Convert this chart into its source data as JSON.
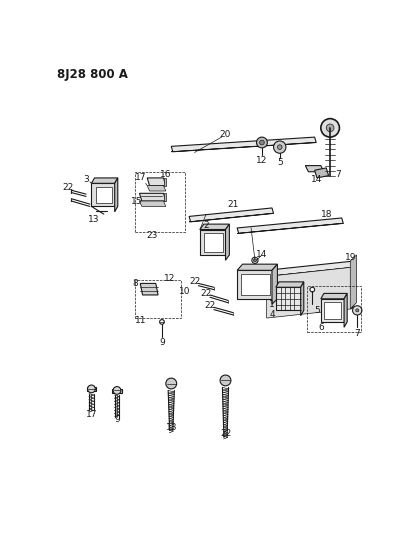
{
  "title": "8J28 800 A",
  "bg_color": "#ffffff",
  "line_color": "#1a1a1a",
  "title_fontsize": 8.5,
  "label_fontsize": 6.5,
  "fig_width": 4.09,
  "fig_height": 5.33,
  "dpi": 100
}
